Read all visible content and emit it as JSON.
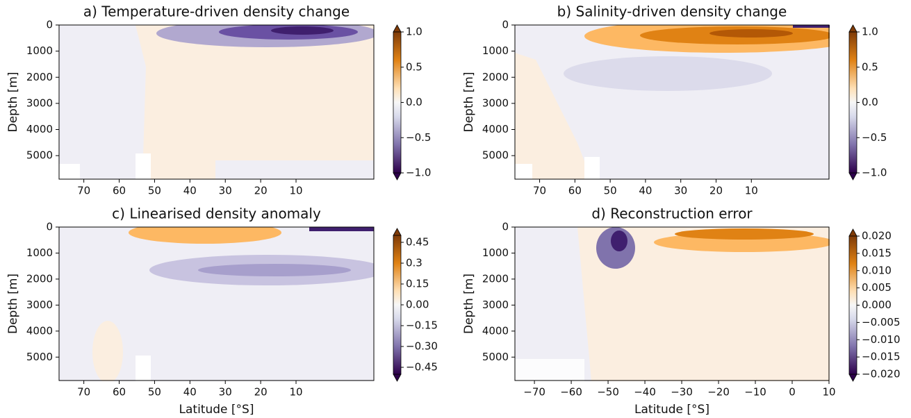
{
  "chart_data": [
    {
      "type": "contour",
      "title": "a) Temperature-driven density change",
      "ylabel": "Depth [m]",
      "xlim": [
        77,
        -12
      ],
      "xticks": [
        70,
        60,
        50,
        40,
        30,
        20,
        10
      ],
      "ylim": [
        0,
        5900
      ],
      "yticks": [
        0,
        1000,
        2000,
        3000,
        4000,
        5000
      ],
      "colorbar": {
        "clim": [
          -1,
          1
        ],
        "ticks": [
          {
            "value": 1,
            "label": "1.0"
          },
          0.5,
          {
            "value": 0,
            "label": "0.0"
          },
          {
            "value": -0.5,
            "label": "−0.5"
          },
          {
            "value": -1,
            "label": "−1.0"
          }
        ]
      }
    },
    {
      "type": "contour",
      "title": "b) Salinity-driven density change",
      "ylabel": "Depth [m]",
      "xlim": [
        77,
        -12
      ],
      "xticks": [
        70,
        60,
        50,
        40,
        30,
        20,
        10
      ],
      "ylim": [
        0,
        5900
      ],
      "yticks": [
        0,
        1000,
        2000,
        3000,
        4000,
        5000
      ],
      "colorbar": {
        "clim": [
          -1,
          1
        ],
        "ticks": [
          {
            "value": 1,
            "label": "1.0"
          },
          0.5,
          {
            "value": 0,
            "label": "0.0"
          },
          {
            "value": -0.5,
            "label": "−0.5"
          },
          {
            "value": -1,
            "label": "−1.0"
          }
        ]
      }
    },
    {
      "type": "contour",
      "title": "c) Linearised density anomaly",
      "ylabel": "Depth [m]",
      "xlabel": "Latitude [$^\\circ$S]",
      "xlim": [
        77,
        -12
      ],
      "xticks": [
        70,
        60,
        50,
        40,
        30,
        20,
        10
      ],
      "ylim": [
        0,
        5900
      ],
      "yticks": [
        0,
        1000,
        2000,
        3000,
        4000,
        5000
      ],
      "colorbar": {
        "clim": [
          -0.5,
          0.5
        ],
        "ticks": [
          0.45,
          0.3,
          0.15,
          {
            "value": 0,
            "label": "0.00"
          },
          {
            "value": -0.15,
            "label": "−0.15"
          },
          {
            "value": -0.3,
            "label": "−0.30"
          },
          {
            "value": -0.45,
            "label": "−0.45"
          }
        ]
      }
    },
    {
      "type": "contour",
      "title": "d) Reconstruction error",
      "ylabel": "Depth [m]",
      "xlabel": "Latitude [$^\\circ$S]",
      "xlim": [
        -75.3,
        10
      ],
      "xticks": [
        {
          "value": -70,
          "label": "−70"
        },
        {
          "value": -60,
          "label": "−60"
        },
        {
          "value": -50,
          "label": "−50"
        },
        {
          "value": -40,
          "label": "−40"
        },
        {
          "value": -30,
          "label": "−30"
        },
        {
          "value": -20,
          "label": "−20"
        },
        {
          "value": -10,
          "label": "−10"
        },
        0,
        10
      ],
      "ylim": [
        0,
        5900
      ],
      "yticks": [
        0,
        1000,
        2000,
        3000,
        4000,
        5000
      ],
      "colorbar": {
        "clim": [
          -0.02,
          0.02
        ],
        "ticks": [
          {
            "value": 0.02,
            "label": "0.020"
          },
          0.015,
          {
            "value": 0.01,
            "label": "0.010"
          },
          0.005,
          {
            "value": 0,
            "label": "0.000"
          },
          {
            "value": -0.005,
            "label": "−0.005"
          },
          {
            "value": -0.01,
            "label": "−0.010"
          },
          {
            "value": -0.015,
            "label": "−0.015"
          },
          {
            "value": -0.02,
            "label": "−0.020"
          }
        ]
      }
    }
  ]
}
